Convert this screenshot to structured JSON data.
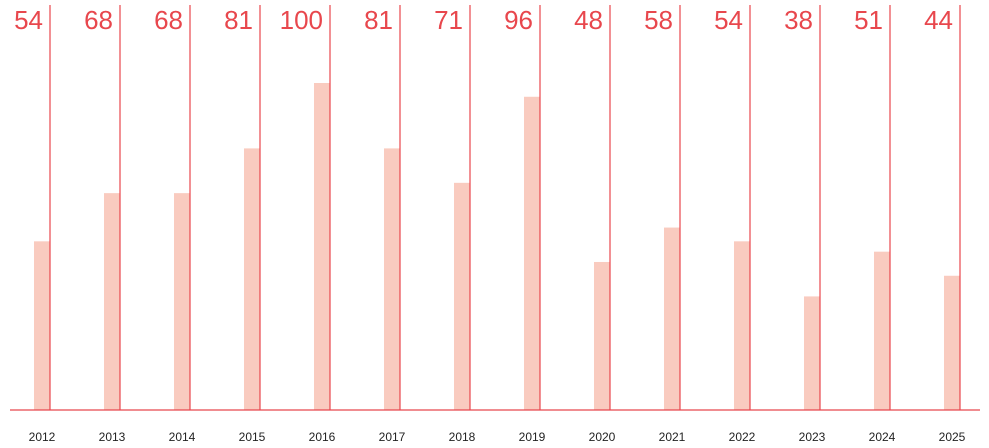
{
  "chart_data": {
    "type": "bar",
    "categories": [
      "2012",
      "2013",
      "2014",
      "2015",
      "2016",
      "2017",
      "2018",
      "2019",
      "2020",
      "2021",
      "2022",
      "2023",
      "2024",
      "2025"
    ],
    "values": [
      54,
      68,
      68,
      81,
      100,
      81,
      71,
      96,
      48,
      58,
      54,
      38,
      51,
      44
    ],
    "color": "#f9cbbf",
    "line_color": "#e8474d",
    "ylim": [
      5,
      100
    ]
  }
}
